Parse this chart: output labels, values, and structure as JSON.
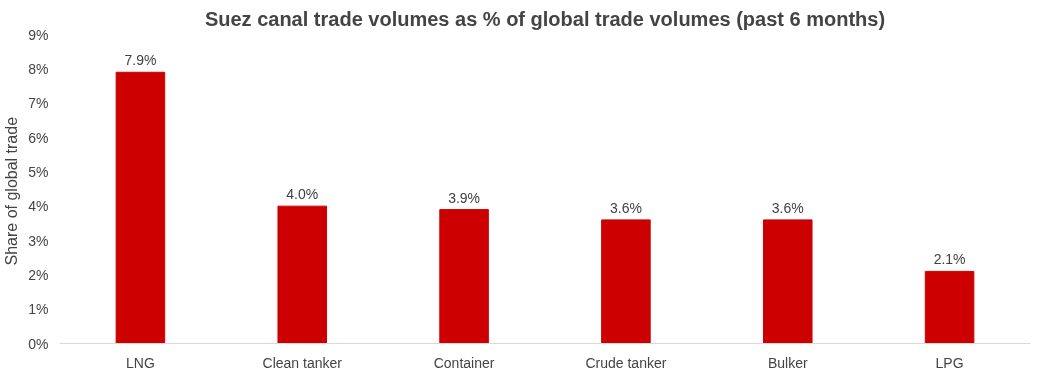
{
  "chart_data": {
    "type": "bar",
    "title": "Suez canal trade volumes as % of global trade volumes (past 6 months)",
    "ylabel": "Share  of global trade",
    "categories": [
      "LNG",
      "Clean tanker",
      "Container",
      "Crude tanker",
      "Bulker",
      "LPG"
    ],
    "series": [
      {
        "color": "#cc0000",
        "values": [
          7.9,
          4.0,
          3.9,
          3.6,
          3.6,
          2.1
        ],
        "value_labels": [
          "7.9%",
          "4.0%",
          "3.9%",
          "3.6%",
          "3.6%",
          "2.1%"
        ]
      }
    ],
    "ylim": [
      0,
      9
    ],
    "yticks": [
      {
        "value": 0,
        "label": "0%"
      },
      {
        "value": 1,
        "label": "1%"
      },
      {
        "value": 2,
        "label": "2%"
      },
      {
        "value": 3,
        "label": "3%"
      },
      {
        "value": 4,
        "label": "4%"
      },
      {
        "value": 5,
        "label": "5%"
      },
      {
        "value": 6,
        "label": "6%"
      },
      {
        "value": 7,
        "label": "7%"
      },
      {
        "value": 8,
        "label": "8%"
      },
      {
        "value": 9,
        "label": "9%"
      }
    ],
    "grid": false
  }
}
